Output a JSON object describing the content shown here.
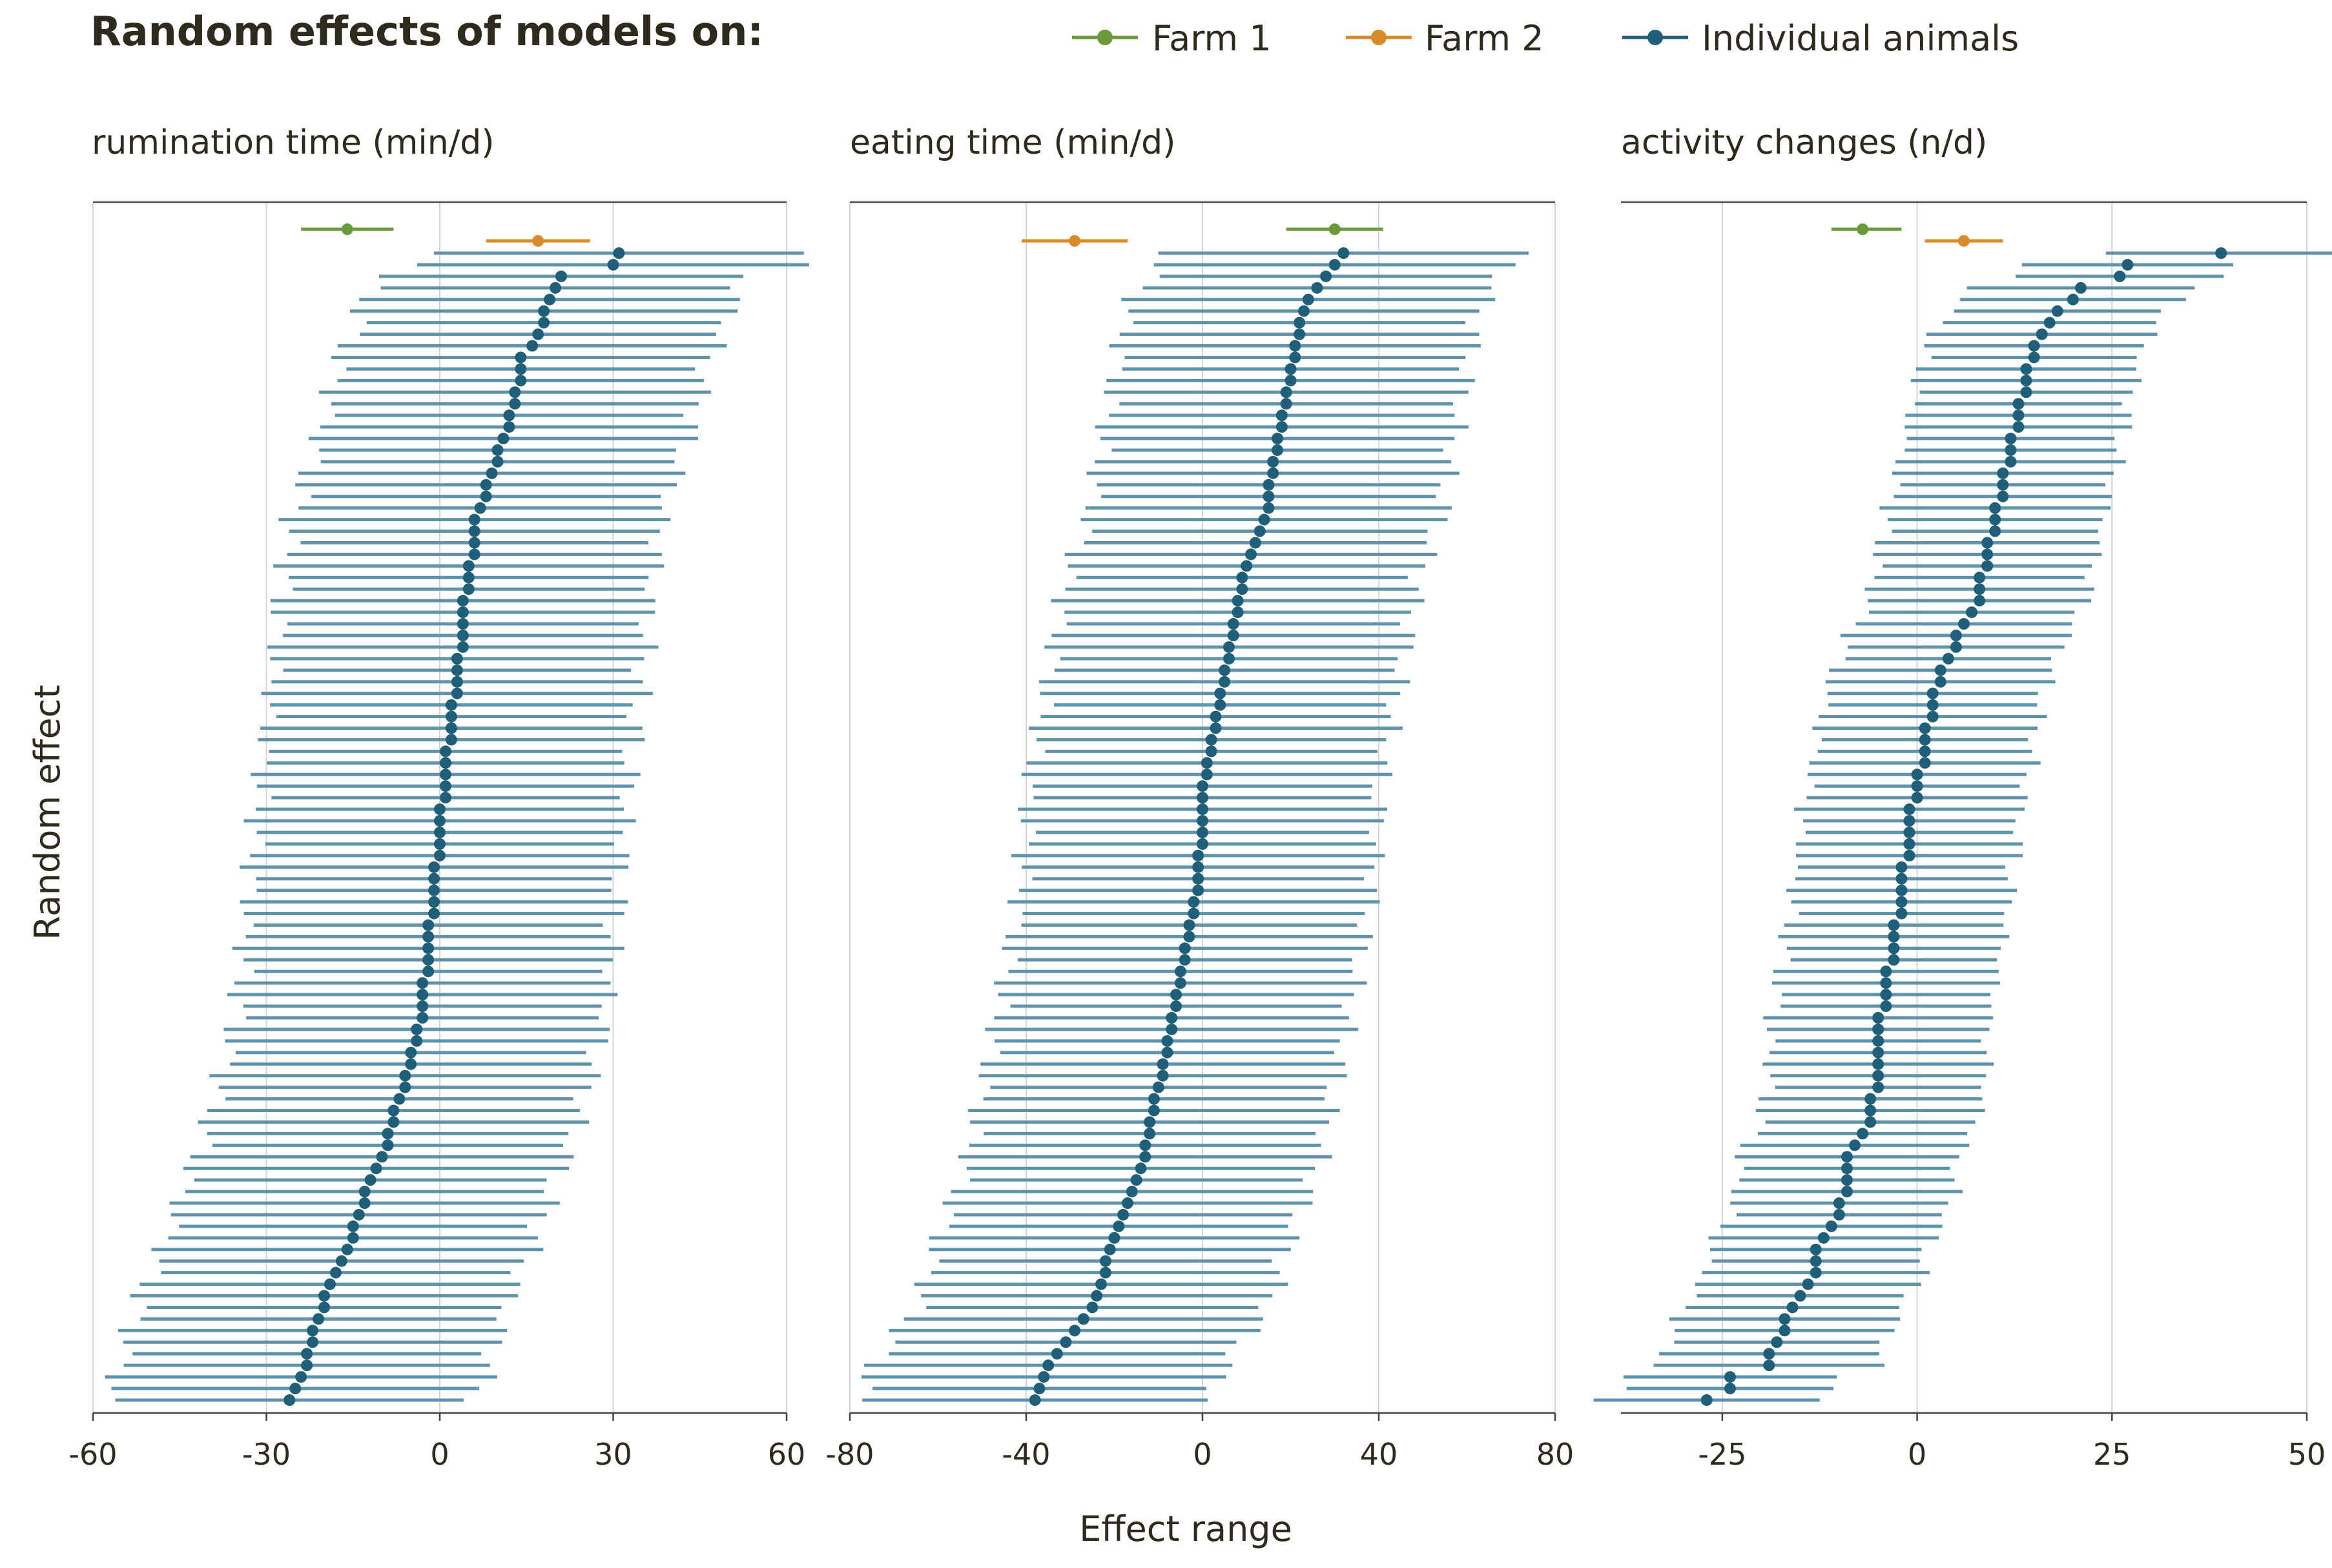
{
  "chart_data": {
    "type": "forest",
    "title": "Random effects of models on:",
    "ylabel": "Random effect",
    "xlabel": "Effect range",
    "colors": {
      "farm1": "#6a9a3a",
      "farm2": "#d98a2a",
      "animals": "#1f5f7a",
      "animal_ci": "#5f93ad",
      "grid": "#d4d4d4",
      "axis": "#444444",
      "text": "#2f2a1e"
    },
    "legend": {
      "position": "top-right",
      "items": [
        {
          "key": "farm1",
          "label": "Farm 1"
        },
        {
          "key": "farm2",
          "label": "Farm 2"
        },
        {
          "key": "animals",
          "label": "Individual animals"
        }
      ]
    },
    "panels": [
      {
        "title": "rumination time (min/d)",
        "xlim": [
          -60,
          60
        ],
        "ticks": [
          -60,
          -30,
          0,
          30,
          60
        ],
        "tick_labels": [
          "-60",
          "-30",
          "0",
          "30",
          "60"
        ],
        "farm1": {
          "est": -16,
          "lo": -24,
          "hi": -8
        },
        "farm2": {
          "est": 17,
          "lo": 8,
          "hi": 26
        },
        "animal_count": 100,
        "animal_est": [
          31,
          30,
          21,
          20,
          19,
          18,
          18,
          17,
          16,
          14,
          14,
          14,
          13,
          13,
          12,
          12,
          11,
          10,
          10,
          9,
          8,
          8,
          7,
          6,
          6,
          6,
          6,
          5,
          5,
          5,
          4,
          4,
          4,
          4,
          4,
          3,
          3,
          3,
          3,
          2,
          2,
          2,
          2,
          1,
          1,
          1,
          1,
          1,
          0,
          0,
          0,
          0,
          0,
          -1,
          -1,
          -1,
          -1,
          -1,
          -2,
          -2,
          -2,
          -2,
          -2,
          -3,
          -3,
          -3,
          -3,
          -4,
          -4,
          -5,
          -5,
          -6,
          -6,
          -7,
          -8,
          -8,
          -9,
          -9,
          -10,
          -11,
          -12,
          -13,
          -13,
          -14,
          -15,
          -15,
          -16,
          -17,
          -18,
          -19,
          -20,
          -20,
          -21,
          -22,
          -22,
          -23,
          -23,
          -24,
          -25,
          -26
        ],
        "animal_half_width": 32
      },
      {
        "title": "eating time (min/d)",
        "xlim": [
          -80,
          80
        ],
        "ticks": [
          -80,
          -40,
          0,
          40,
          80
        ],
        "tick_labels": [
          "-80",
          "-40",
          "0",
          "40",
          "80"
        ],
        "farm1": {
          "est": 30,
          "lo": 19,
          "hi": 41
        },
        "farm2": {
          "est": -29,
          "lo": -41,
          "hi": -17
        },
        "animal_count": 100,
        "animal_est": [
          32,
          30,
          28,
          26,
          24,
          23,
          22,
          22,
          21,
          21,
          20,
          20,
          19,
          19,
          18,
          18,
          17,
          17,
          16,
          16,
          15,
          15,
          15,
          14,
          13,
          12,
          11,
          10,
          9,
          9,
          8,
          8,
          7,
          7,
          6,
          6,
          5,
          5,
          4,
          4,
          3,
          3,
          2,
          2,
          1,
          1,
          0,
          0,
          0,
          0,
          0,
          0,
          -1,
          -1,
          -1,
          -1,
          -2,
          -2,
          -3,
          -3,
          -4,
          -4,
          -5,
          -5,
          -6,
          -6,
          -7,
          -7,
          -8,
          -8,
          -9,
          -9,
          -10,
          -11,
          -11,
          -12,
          -12,
          -13,
          -13,
          -14,
          -15,
          -16,
          -17,
          -18,
          -19,
          -20,
          -21,
          -22,
          -22,
          -23,
          -24,
          -25,
          -27,
          -29,
          -31,
          -33,
          -35,
          -36,
          -37,
          -38
        ],
        "animal_half_width": 40
      },
      {
        "title": "activity changes (n/d)",
        "xlim": [
          -38,
          50
        ],
        "ticks": [
          -25,
          0,
          25,
          50
        ],
        "tick_labels": [
          "-25",
          "0",
          "25",
          "50"
        ],
        "farm1": {
          "est": -7,
          "lo": -11,
          "hi": -2
        },
        "farm2": {
          "est": 6,
          "lo": 1,
          "hi": 11
        },
        "animal_count": 100,
        "animal_est": [
          39,
          27,
          26,
          21,
          20,
          18,
          17,
          16,
          15,
          15,
          14,
          14,
          14,
          13,
          13,
          13,
          12,
          12,
          12,
          11,
          11,
          11,
          10,
          10,
          10,
          9,
          9,
          9,
          8,
          8,
          8,
          7,
          6,
          5,
          5,
          4,
          3,
          3,
          2,
          2,
          2,
          1,
          1,
          1,
          1,
          0,
          0,
          0,
          -1,
          -1,
          -1,
          -1,
          -1,
          -2,
          -2,
          -2,
          -2,
          -2,
          -3,
          -3,
          -3,
          -3,
          -4,
          -4,
          -4,
          -4,
          -5,
          -5,
          -5,
          -5,
          -5,
          -5,
          -5,
          -6,
          -6,
          -6,
          -7,
          -8,
          -9,
          -9,
          -9,
          -9,
          -10,
          -10,
          -11,
          -12,
          -13,
          -13,
          -13,
          -14,
          -15,
          -16,
          -17,
          -17,
          -18,
          -19,
          -19,
          -24,
          -24,
          -27
        ],
        "animal_half_width": 14
      }
    ]
  }
}
